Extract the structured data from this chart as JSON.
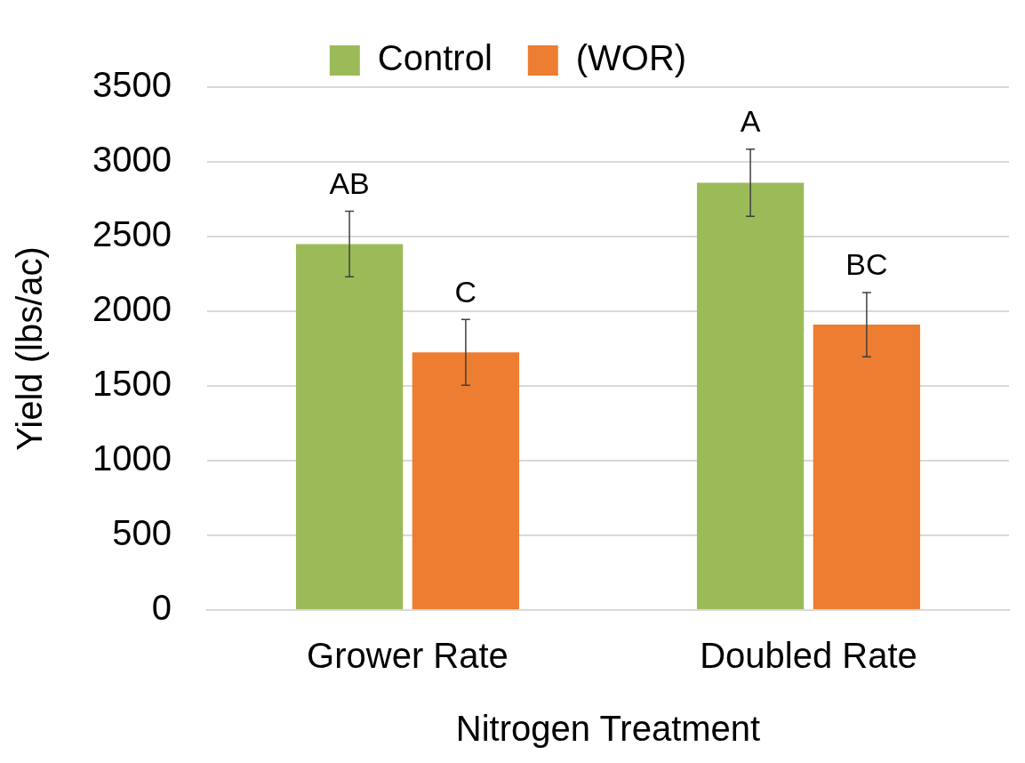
{
  "chart_data": {
    "type": "bar",
    "xlabel": "Nitrogen Treatment",
    "ylabel": "Yield (lbs/ac)",
    "categories": [
      "Grower Rate",
      "Doubled Rate"
    ],
    "series": [
      {
        "name": "Control",
        "color": "#9bbb59",
        "values": [
          2450,
          2860
        ],
        "errors": [
          220,
          225
        ],
        "value_labels": [
          "AB",
          "A"
        ]
      },
      {
        "name": "(WOR)",
        "color": "#ed7d31",
        "values": [
          1725,
          1910
        ],
        "errors": [
          220,
          215
        ],
        "value_labels": [
          "C",
          "BC"
        ]
      }
    ],
    "ylim": [
      0,
      3500
    ],
    "yticks": [
      0,
      500,
      1000,
      1500,
      2000,
      2500,
      3000,
      3500
    ],
    "grid": "y",
    "legend": "top"
  }
}
